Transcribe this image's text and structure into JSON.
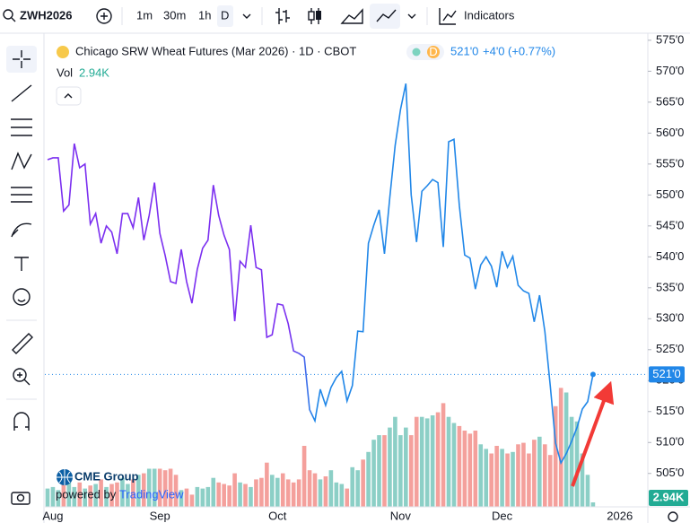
{
  "toolbar": {
    "symbol": "ZWH2026",
    "intervals": [
      "1m",
      "30m",
      "1h",
      "D"
    ],
    "indicators": "Indicators"
  },
  "legend": {
    "title": "Chicago SRW Wheat Futures (Mar 2026) · 1D · CBOT",
    "badge": "D",
    "price": "521'0",
    "change": "+4'0",
    "change_pct": "(+0.77%)",
    "vol_label": "Vol",
    "vol": "2.94K"
  },
  "logo": {
    "brand": "CME Group",
    "powered": "powered by",
    "platform": "TradingView"
  },
  "chart_data": {
    "type": "line",
    "categories": [
      null,
      "Aug",
      null,
      null,
      null,
      null,
      null,
      null,
      null,
      null,
      null,
      null,
      null,
      null,
      null,
      null,
      null,
      null,
      null,
      null,
      null,
      "Sep",
      null,
      null,
      null,
      null,
      null,
      null,
      null,
      null,
      null,
      null,
      null,
      null,
      null,
      null,
      null,
      null,
      null,
      null,
      null,
      null,
      null,
      "Oct",
      null,
      null,
      null,
      null,
      null,
      null,
      null,
      null,
      null,
      null,
      null,
      null,
      null,
      null,
      null,
      null,
      null,
      null,
      null,
      null,
      null,
      null,
      "Nov",
      null,
      null,
      null,
      null,
      null,
      null,
      null,
      null,
      null,
      null,
      null,
      null,
      null,
      null,
      null,
      null,
      null,
      null,
      "Dec",
      null,
      null,
      null,
      null,
      null,
      null,
      null,
      null,
      null,
      null,
      null,
      null,
      null,
      null,
      null,
      null,
      null,
      null,
      null,
      null,
      null,
      "2026"
    ],
    "values": [
      555.7,
      556,
      556,
      547.4,
      548.4,
      558.3,
      554.4,
      555,
      545.3,
      547,
      542.2,
      545,
      544,
      540.5,
      547,
      547,
      544.7,
      549.6,
      542.7,
      546.7,
      552,
      543.8,
      540.2,
      536,
      535.7,
      541.2,
      536,
      532.5,
      538,
      541.4,
      542.7,
      551.6,
      546.7,
      543.5,
      541.2,
      529.6,
      539.3,
      538.3,
      545.1,
      538.3,
      537.9,
      527,
      527.4,
      532.4,
      532.2,
      529.2,
      524.8,
      524.4,
      523.8,
      515.3,
      513.5,
      518.6,
      516,
      518.9,
      520.5,
      521.5,
      516.7,
      519.2,
      528,
      527.9,
      542.2,
      545.1,
      547.6,
      540.5,
      549.6,
      558,
      563.8,
      568,
      550,
      542.4,
      550.6,
      551.5,
      552.5,
      552,
      541.6,
      558.6,
      559,
      548.3,
      540.3,
      539.8,
      534.8,
      538.7,
      540,
      538.5,
      535.1,
      540.9,
      538.3,
      540.1,
      535.4,
      534.5,
      534.1,
      529.5,
      533.8,
      527.9,
      519.2,
      509.9,
      506.7,
      508.2,
      510.2,
      512.4,
      515.4,
      516.6,
      521,
      null,
      null,
      null,
      null,
      null
    ],
    "colors": [
      "#7b2ff0",
      "#2187e8"
    ],
    "ylim": [
      499.6,
      576
    ],
    "yticks": [
      {
        "value": 505,
        "label": "505'0"
      },
      {
        "value": 510,
        "label": "510'0"
      },
      {
        "value": 515,
        "label": "515'0"
      },
      {
        "value": 520,
        "label": "520'0"
      },
      {
        "value": 525,
        "label": "525'0"
      },
      {
        "value": 530,
        "label": "530'0"
      },
      {
        "value": 535,
        "label": "535'0"
      },
      {
        "value": 540,
        "label": "540'0"
      },
      {
        "value": 545,
        "label": "545'0"
      },
      {
        "value": 550,
        "label": "550'0"
      },
      {
        "value": 555,
        "label": "555'0"
      },
      {
        "value": 560,
        "label": "560'0"
      },
      {
        "value": 565,
        "label": "565'0"
      },
      {
        "value": 570,
        "label": "570'0"
      },
      {
        "value": 575,
        "label": "575'0"
      }
    ],
    "grid": false,
    "volume": {
      "values": [
        12,
        13,
        11,
        15,
        18,
        13,
        16,
        12,
        14,
        15,
        18,
        13,
        15,
        16,
        19,
        15,
        18,
        21,
        22,
        25,
        25,
        25,
        24,
        25,
        21,
        11,
        12,
        8,
        13,
        12,
        13,
        19,
        16,
        15,
        14,
        22,
        16,
        15,
        13,
        18,
        19,
        29,
        21,
        19,
        22,
        18,
        16,
        18,
        40,
        24,
        22,
        18,
        20,
        24,
        16,
        15,
        12,
        26,
        24,
        31,
        36,
        44,
        47,
        47,
        52,
        59,
        47,
        52,
        47,
        59,
        59,
        58,
        60,
        62,
        68,
        59,
        55,
        53,
        50,
        48,
        50,
        41,
        38,
        35,
        40,
        38,
        35,
        36,
        41,
        42,
        35,
        44,
        46,
        41,
        34,
        66,
        78,
        75,
        59,
        56,
        35,
        21,
        2.94,
        null,
        null,
        null,
        null,
        null
      ],
      "ylim": [
        0,
        310
      ],
      "up_color": "#8ccfc6",
      "down_color": "#f4a09c"
    }
  }
}
